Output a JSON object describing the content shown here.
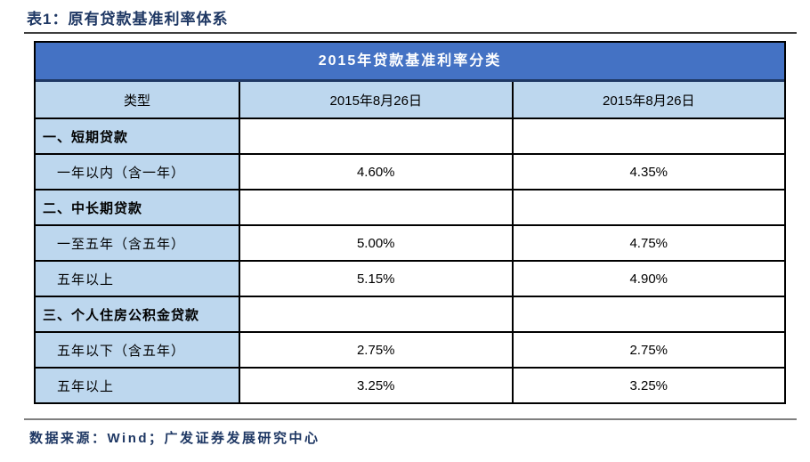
{
  "title": "表1：原有贷款基准利率体系",
  "table": {
    "merged_header": "2015年贷款基准利率分类",
    "col_headers": {
      "type": "类型",
      "date1": "2015年8月26日",
      "date2": "2015年8月26日"
    },
    "rows": [
      {
        "kind": "section",
        "label": "一、短期贷款",
        "v1": "",
        "v2": ""
      },
      {
        "kind": "item",
        "label": "一年以内（含一年）",
        "v1": "4.60%",
        "v2": "4.35%"
      },
      {
        "kind": "section",
        "label": "二、中长期贷款",
        "v1": "",
        "v2": ""
      },
      {
        "kind": "item",
        "label": "一至五年（含五年）",
        "v1": "5.00%",
        "v2": "4.75%"
      },
      {
        "kind": "item",
        "label": "五年以上",
        "v1": "5.15%",
        "v2": "4.90%"
      },
      {
        "kind": "section",
        "label": "三、个人住房公积金贷款",
        "v1": "",
        "v2": ""
      },
      {
        "kind": "item",
        "label": "五年以下（含五年）",
        "v1": "2.75%",
        "v2": "2.75%"
      },
      {
        "kind": "item",
        "label": "五年以上",
        "v1": "3.25%",
        "v2": "3.25%"
      }
    ]
  },
  "footer": {
    "source_note": "数据来源：Wind；广发证券发展研究中心"
  },
  "colors": {
    "header_bg": "#4472C4",
    "header_text": "#FFFFFF",
    "label_column_bg": "#BDD7EE",
    "header_separator": "#1F3864",
    "table_border": "#000000",
    "title_text": "#1F3864"
  }
}
